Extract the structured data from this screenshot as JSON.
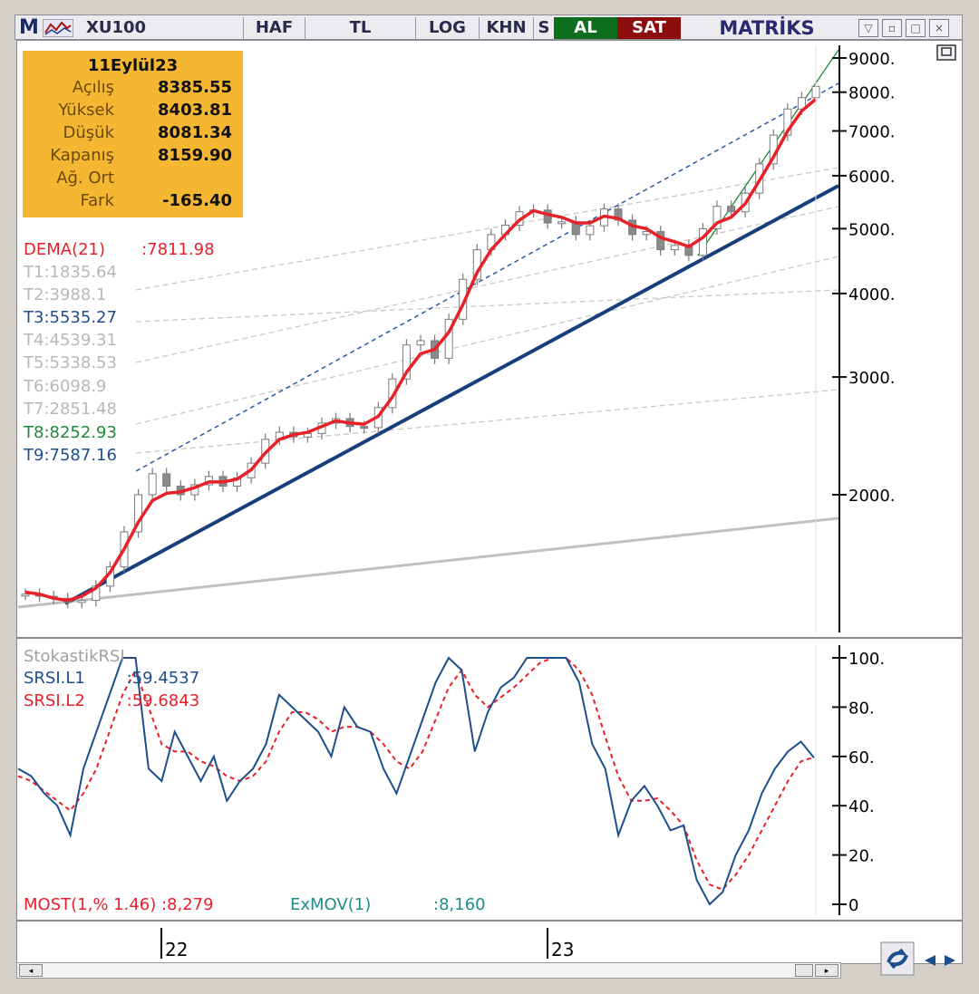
{
  "toolbar": {
    "logo": "M",
    "symbol": "XU100",
    "period": "HAF",
    "currency": "TL",
    "scale": "LOG",
    "khn": "KHN",
    "s": "S",
    "buy": "AL",
    "sell": "SAT",
    "brand": "MATRİKS",
    "win_buttons": [
      "▽",
      "▫",
      "□",
      "×"
    ]
  },
  "info": {
    "date": "11Eylül23",
    "rows": [
      {
        "label": "Açılış",
        "value": "8385.55"
      },
      {
        "label": "Yüksek",
        "value": "8403.81"
      },
      {
        "label": "Düşük",
        "value": "8081.34"
      },
      {
        "label": "Kapanış",
        "value": "8159.90"
      },
      {
        "label": "Ağ. Ort",
        "value": ""
      },
      {
        "label": "Fark",
        "value": "-165.40"
      }
    ]
  },
  "indicators": [
    {
      "text": "DEMA(21)       :7811.98",
      "color": "#e8202a"
    },
    {
      "text": "T1:1835.64",
      "color": "#b8b8b8"
    },
    {
      "text": "T2:3988.1",
      "color": "#b8b8b8"
    },
    {
      "text": "T3:5535.27",
      "color": "#1c4f8c"
    },
    {
      "text": "T4:4539.31",
      "color": "#b8b8b8"
    },
    {
      "text": "T5:5338.53",
      "color": "#b8b8b8"
    },
    {
      "text": "T6:6098.9",
      "color": "#b8b8b8"
    },
    {
      "text": "T7:2851.48",
      "color": "#b8b8b8"
    },
    {
      "text": "T8:8252.93",
      "color": "#1e8a3a"
    },
    {
      "text": "T9:7587.16",
      "color": "#1c4f8c"
    }
  ],
  "lower": {
    "title": "StokastikRSI",
    "l1": "SRSI.L1        :59.4537",
    "l2": "SRSI.L2        :59.6843",
    "most": "MOST(1,% 1.46) :8,279",
    "exmov": "ExMOV(1)",
    "exmov_val": ":8,160"
  },
  "chart_data": [
    {
      "type": "line",
      "scale": "log",
      "ticks": [
        "9000.",
        "8000.",
        "7000.",
        "6000.",
        "5000.",
        "4000.",
        "3000.",
        "2000."
      ],
      "x_labels": [
        "22",
        "23"
      ],
      "price_close": [
        1420,
        1410,
        1400,
        1380,
        1390,
        1460,
        1560,
        1760,
        2000,
        2150,
        2060,
        2000,
        2070,
        2130,
        2060,
        2120,
        2230,
        2420,
        2480,
        2440,
        2470,
        2560,
        2600,
        2530,
        2520,
        2700,
        2980,
        3350,
        3400,
        3200,
        3660,
        4200,
        4650,
        4900,
        5060,
        5300,
        5330,
        5100,
        5120,
        4900,
        5050,
        5350,
        5150,
        4900,
        4950,
        4650,
        4720,
        4560,
        5000,
        5400,
        5300,
        5650,
        6250,
        6900,
        7550,
        7850,
        8160
      ],
      "series": [
        {
          "name": "DEMA(21)",
          "color": "#e8202a",
          "values": [
            1430,
            1420,
            1400,
            1390,
            1410,
            1450,
            1530,
            1660,
            1820,
            1960,
            2010,
            2020,
            2050,
            2090,
            2090,
            2110,
            2180,
            2310,
            2420,
            2460,
            2480,
            2530,
            2580,
            2560,
            2550,
            2620,
            2800,
            3050,
            3250,
            3300,
            3500,
            3850,
            4300,
            4650,
            4900,
            5150,
            5320,
            5250,
            5200,
            5100,
            5100,
            5220,
            5180,
            5050,
            5000,
            4850,
            4780,
            4700,
            4850,
            5100,
            5200,
            5450,
            5900,
            6400,
            7000,
            7500,
            7812
          ]
        }
      ]
    },
    {
      "type": "line",
      "y_ticks": [
        "100.",
        "80.",
        "60.",
        "40.",
        "20.",
        "0"
      ],
      "ylim": [
        0,
        100
      ],
      "series": [
        {
          "name": "SRSI.L1",
          "color": "#1c4f8c",
          "values": [
            55,
            52,
            45,
            40,
            28,
            55,
            70,
            85,
            100,
            100,
            55,
            50,
            70,
            60,
            50,
            60,
            42,
            50,
            55,
            65,
            85,
            80,
            75,
            70,
            60,
            80,
            72,
            70,
            55,
            45,
            60,
            75,
            90,
            100,
            95,
            62,
            78,
            88,
            92,
            100,
            100,
            100,
            100,
            90,
            65,
            55,
            28,
            42,
            48,
            40,
            30,
            32,
            10,
            0,
            5,
            20,
            30,
            45,
            55,
            62,
            66,
            59.45
          ]
        },
        {
          "name": "SRSI.L2",
          "color": "#e8202a",
          "values": [
            52,
            50,
            46,
            42,
            38,
            45,
            55,
            70,
            85,
            95,
            80,
            65,
            62,
            62,
            58,
            56,
            52,
            50,
            52,
            58,
            70,
            78,
            78,
            75,
            70,
            72,
            72,
            70,
            65,
            58,
            55,
            62,
            75,
            88,
            95,
            85,
            80,
            84,
            88,
            93,
            98,
            100,
            100,
            95,
            85,
            68,
            52,
            42,
            42,
            43,
            38,
            32,
            18,
            8,
            6,
            12,
            20,
            30,
            40,
            50,
            58,
            59.68
          ]
        }
      ]
    }
  ]
}
